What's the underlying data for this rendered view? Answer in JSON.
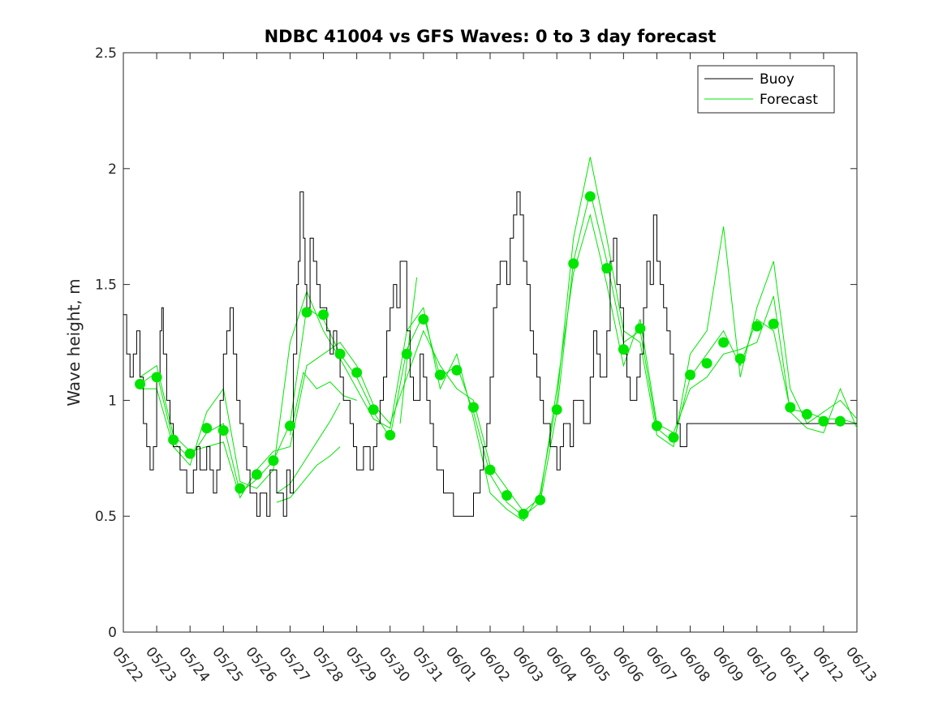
{
  "chart_data": {
    "type": "line",
    "title": "NDBC 41004 vs GFS Waves: 0 to 3 day forecast",
    "xlabel": "",
    "ylabel": "Wave height, m",
    "ylim": [
      0,
      2.5
    ],
    "xlim": [
      "05/22",
      "06/13"
    ],
    "yticks": [
      0,
      0.5,
      1,
      1.5,
      2,
      2.5
    ],
    "ytick_labels": [
      "0",
      "0.5",
      "1",
      "1.5",
      "2",
      "2.5"
    ],
    "xtick_labels": [
      "05/22",
      "05/23",
      "05/24",
      "05/25",
      "05/26",
      "05/27",
      "05/28",
      "05/29",
      "05/30",
      "05/31",
      "06/01",
      "06/02",
      "06/03",
      "06/04",
      "06/05",
      "06/06",
      "06/07",
      "06/08",
      "06/09",
      "06/10",
      "06/11",
      "06/12",
      "06/13"
    ],
    "grid": false,
    "legend": {
      "placement": "top-right",
      "entries": [
        "Buoy",
        "Forecast"
      ]
    },
    "colors": {
      "buoy": "#000000",
      "forecast": "#00e600"
    },
    "buoy": {
      "name": "Buoy",
      "x_days": [
        0,
        0.1,
        0.2,
        0.3,
        0.4,
        0.5,
        0.6,
        0.7,
        0.8,
        0.9,
        1.0,
        1.1,
        1.15,
        1.2,
        1.3,
        1.4,
        1.5,
        1.6,
        1.7,
        1.8,
        1.9,
        2.0,
        2.1,
        2.2,
        2.3,
        2.4,
        2.5,
        2.6,
        2.7,
        2.8,
        2.9,
        3.0,
        3.1,
        3.2,
        3.3,
        3.4,
        3.5,
        3.6,
        3.7,
        3.8,
        3.9,
        4.0,
        4.1,
        4.2,
        4.3,
        4.4,
        4.5,
        4.6,
        4.7,
        4.8,
        4.9,
        5.0,
        5.1,
        5.2,
        5.25,
        5.3,
        5.35,
        5.4,
        5.45,
        5.5,
        5.6,
        5.7,
        5.8,
        5.9,
        6.0,
        6.1,
        6.2,
        6.3,
        6.4,
        6.5,
        6.6,
        6.7,
        6.8,
        6.9,
        7.0,
        7.1,
        7.2,
        7.3,
        7.4,
        7.5,
        7.6,
        7.7,
        7.8,
        7.9,
        8.0,
        8.1,
        8.2,
        8.3,
        8.4,
        8.5,
        8.6,
        8.7,
        8.8,
        8.9,
        9.0,
        9.1,
        9.2,
        9.3,
        9.4,
        9.5,
        9.6,
        9.7,
        9.8,
        9.9,
        10.0,
        10.1,
        10.2,
        10.3,
        10.4,
        10.5,
        10.6,
        10.7,
        10.8,
        10.9,
        11.0,
        11.1,
        11.2,
        11.3,
        11.4,
        11.5,
        11.6,
        11.7,
        11.8,
        11.9,
        12.0,
        12.1,
        12.2,
        12.3,
        12.4,
        12.5,
        12.6,
        12.7,
        12.8,
        12.9,
        13.0,
        13.1,
        13.2,
        13.3,
        13.4,
        13.5,
        13.6,
        13.7,
        13.8,
        13.9,
        14.0,
        14.1,
        14.2,
        14.3,
        14.4,
        14.5,
        14.6,
        14.7,
        14.8,
        14.9,
        15.0,
        15.1,
        15.2,
        15.3,
        15.4,
        15.5,
        15.6,
        15.7,
        15.8,
        15.9,
        16.0,
        16.1,
        16.2,
        16.3,
        16.4,
        16.5,
        16.6,
        16.7,
        16.8,
        16.9,
        17.0,
        17.1,
        17.2,
        17.3,
        17.4,
        17.5,
        17.6,
        17.7,
        17.8,
        17.9,
        18.0,
        18.1,
        18.2,
        18.3,
        18.4,
        18.5,
        18.6,
        18.7,
        18.8,
        18.9,
        19.0,
        19.1,
        19.2,
        19.3,
        19.4,
        19.5,
        19.6,
        19.7,
        19.8,
        19.9,
        20.0,
        20.1,
        20.2,
        20.3,
        20.4,
        20.5,
        20.6,
        20.7,
        20.8,
        20.9,
        21.0,
        21.1,
        21.2,
        21.3,
        21.4,
        21.5,
        21.6,
        21.7,
        21.8,
        21.9,
        22.0
      ],
      "y": [
        1.37,
        1.2,
        1.1,
        1.2,
        1.3,
        1.1,
        0.9,
        0.8,
        0.7,
        0.8,
        1.1,
        1.3,
        1.4,
        1.2,
        1.0,
        0.9,
        0.8,
        0.8,
        0.7,
        0.7,
        0.6,
        0.6,
        0.7,
        0.8,
        0.7,
        0.7,
        0.8,
        0.7,
        0.6,
        0.7,
        1.0,
        1.2,
        1.3,
        1.4,
        1.2,
        1.0,
        0.9,
        0.8,
        0.7,
        0.6,
        0.6,
        0.5,
        0.6,
        0.6,
        0.5,
        0.7,
        0.7,
        0.6,
        0.6,
        0.5,
        0.7,
        0.6,
        1.2,
        1.5,
        1.6,
        1.9,
        1.9,
        1.7,
        1.5,
        1.4,
        1.7,
        1.6,
        1.5,
        1.4,
        1.4,
        1.3,
        1.2,
        1.3,
        1.2,
        1.1,
        1.0,
        1.0,
        0.9,
        0.8,
        0.7,
        0.7,
        0.8,
        0.8,
        0.7,
        0.8,
        0.9,
        1.0,
        1.1,
        1.3,
        1.4,
        1.5,
        1.4,
        1.6,
        1.6,
        1.3,
        1.1,
        1.0,
        1.0,
        1.2,
        1.1,
        1.0,
        0.9,
        0.8,
        0.7,
        0.7,
        0.6,
        0.6,
        0.6,
        0.5,
        0.5,
        0.5,
        0.5,
        0.5,
        0.5,
        0.6,
        0.6,
        0.7,
        0.8,
        0.9,
        1.1,
        1.4,
        1.5,
        1.6,
        1.6,
        1.5,
        1.7,
        1.8,
        1.9,
        1.8,
        1.6,
        1.5,
        1.3,
        1.2,
        1.1,
        1.0,
        0.9,
        0.9,
        0.8,
        0.8,
        0.7,
        0.8,
        0.9,
        0.9,
        0.8,
        1.0,
        1.0,
        1.0,
        0.9,
        0.9,
        1.1,
        1.3,
        1.2,
        1.1,
        1.1,
        1.3,
        1.6,
        1.7,
        1.5,
        1.4,
        1.2,
        1.1,
        1.0,
        1.0,
        1.1,
        1.2,
        1.4,
        1.6,
        1.5,
        1.8,
        1.6,
        1.5,
        1.4,
        1.3,
        1.2,
        1.0,
        0.9,
        0.8,
        0.8,
        0.9,
        0.9,
        0.9,
        0.9,
        0.9,
        0.9,
        0.9,
        0.9,
        0.9,
        0.9,
        0.9,
        0.9,
        0.9,
        0.9,
        0.9,
        0.9,
        0.9,
        0.9,
        0.9,
        0.9,
        0.9,
        0.9,
        0.9,
        0.9,
        0.9,
        0.9,
        0.9,
        0.9,
        0.9,
        0.9,
        0.9,
        0.9,
        0.9,
        0.9,
        0.9,
        0.9,
        0.9,
        0.9,
        0.9,
        0.9,
        0.9,
        0.9,
        0.9,
        0.9,
        0.9,
        0.9,
        0.9,
        0.9,
        0.9,
        0.9,
        0.9,
        0.9
      ]
    },
    "forecast_points": {
      "name": "Forecast",
      "x_days": [
        0.5,
        1.0,
        1.5,
        2.0,
        2.5,
        3.0,
        3.5,
        4.0,
        4.5,
        5.0,
        5.5,
        6.0,
        6.5,
        7.0,
        7.5,
        8.0,
        8.5,
        9.0,
        9.5,
        10.0,
        10.5,
        11.0,
        11.5,
        12.0,
        12.5,
        13.0,
        13.5,
        14.0,
        14.5,
        15.0,
        15.5,
        16.0,
        16.5,
        17.0,
        17.5,
        18.0,
        18.5,
        19.0,
        19.5,
        20.0,
        20.5,
        21.0,
        21.5
      ],
      "y": [
        1.07,
        1.1,
        0.83,
        0.77,
        0.88,
        0.87,
        0.62,
        0.68,
        0.74,
        0.89,
        1.38,
        1.37,
        1.2,
        1.12,
        0.96,
        0.85,
        1.2,
        1.35,
        1.11,
        1.13,
        0.97,
        0.7,
        0.59,
        0.51,
        0.57,
        0.96,
        1.59,
        1.88,
        1.57,
        1.22,
        1.31,
        0.89,
        0.84,
        1.11,
        1.16,
        1.25,
        1.18,
        1.32,
        1.33,
        0.97,
        0.94,
        0.91,
        0.91
      ]
    },
    "forecast_runs": [
      {
        "name": "Forecast",
        "x_days": [
          0.5,
          1.0,
          1.5,
          2.0,
          2.5,
          3.0,
          3.5,
          4.0,
          4.5,
          5.0,
          5.5,
          6.0,
          6.5,
          7.0,
          7.5,
          8.0,
          8.5,
          9.0,
          9.5,
          10.0,
          10.5,
          11.0,
          11.5,
          12.0,
          12.5,
          13.0,
          13.5,
          14.0,
          14.5,
          15.0,
          15.5,
          16.0,
          16.5,
          17.0,
          17.5,
          18.0,
          18.5,
          19.0,
          19.5,
          20.0,
          20.5,
          21.0,
          21.5,
          22.0
        ],
        "y": [
          1.07,
          1.12,
          0.82,
          0.75,
          0.86,
          0.9,
          0.6,
          0.66,
          0.74,
          0.9,
          1.4,
          1.35,
          1.2,
          1.1,
          0.95,
          0.84,
          1.22,
          1.37,
          1.1,
          1.15,
          0.95,
          0.68,
          0.56,
          0.5,
          0.56,
          0.95,
          1.6,
          1.9,
          1.6,
          1.25,
          1.3,
          0.88,
          0.82,
          1.1,
          1.2,
          1.3,
          1.15,
          1.35,
          1.3,
          0.96,
          0.95,
          0.92,
          0.92,
          0.9
        ]
      },
      {
        "name": "Forecast",
        "x_days": [
          0.5,
          1.0,
          1.5,
          2.0,
          2.5,
          3.0,
          3.5,
          4.0,
          4.5,
          5.0,
          5.5,
          6.0,
          6.5,
          7.0,
          7.5,
          8.0,
          8.5,
          9.0,
          9.5,
          10.0,
          10.5,
          11.0,
          11.5,
          12.0,
          12.5,
          13.0,
          13.5,
          14.0,
          14.5,
          15.0,
          15.5,
          16.0,
          16.5,
          17.0,
          17.5,
          18.0,
          18.5,
          19.0,
          19.5,
          20.0,
          20.5,
          21.0,
          21.5,
          22.0
        ],
        "y": [
          1.05,
          1.05,
          0.8,
          0.72,
          0.95,
          1.05,
          0.65,
          0.62,
          0.7,
          1.25,
          1.47,
          1.3,
          1.18,
          1.05,
          0.92,
          0.88,
          1.3,
          1.4,
          1.05,
          1.2,
          0.92,
          0.6,
          0.53,
          0.48,
          0.6,
          1.0,
          1.7,
          2.05,
          1.7,
          1.3,
          1.25,
          0.85,
          0.8,
          1.2,
          1.3,
          1.75,
          1.1,
          1.4,
          1.6,
          1.05,
          0.9,
          0.95,
          1.0,
          0.92
        ]
      },
      {
        "name": "Forecast",
        "x_days": [
          0.5,
          1.0,
          1.5,
          2.0,
          2.5,
          3.0,
          3.5,
          4.0,
          4.5,
          5.0,
          5.5,
          6.0,
          6.5,
          7.0,
          7.5,
          8.0,
          8.5,
          9.0,
          9.5,
          10.0,
          10.5,
          11.0,
          11.5,
          12.0,
          12.5,
          13.0,
          13.5,
          14.0,
          14.5,
          15.0,
          15.5,
          16.0,
          16.5,
          17.0,
          17.5,
          18.0,
          18.5,
          19.0,
          19.5,
          20.0,
          20.5,
          21.0,
          21.5,
          22.0
        ],
        "y": [
          1.1,
          1.15,
          0.85,
          0.78,
          0.8,
          0.82,
          0.58,
          0.7,
          0.78,
          0.8,
          1.15,
          1.2,
          1.25,
          1.15,
          0.98,
          0.9,
          1.1,
          1.3,
          1.15,
          1.05,
          1.0,
          0.72,
          0.62,
          0.52,
          0.58,
          1.05,
          1.55,
          1.8,
          1.5,
          1.15,
          1.35,
          0.9,
          0.86,
          1.05,
          1.1,
          1.2,
          1.22,
          1.25,
          1.45,
          0.95,
          0.88,
          0.86,
          1.05,
          0.88
        ]
      },
      {
        "name": "Forecast",
        "x_days": [
          4.6,
          5.0,
          5.4,
          5.8,
          6.2,
          6.5
        ],
        "y": [
          0.56,
          0.58,
          0.65,
          0.72,
          0.76,
          0.8
        ]
      },
      {
        "name": "Forecast",
        "x_days": [
          4.6,
          5.0,
          5.4,
          5.8,
          6.2,
          6.5
        ],
        "y": [
          0.6,
          0.64,
          0.73,
          0.82,
          0.91,
          0.99
        ]
      },
      {
        "name": "Forecast",
        "x_days": [
          5.0,
          5.4,
          5.8,
          6.2,
          6.6,
          7.0
        ],
        "y": [
          0.85,
          1.12,
          1.05,
          1.08,
          1.02,
          1.0
        ]
      },
      {
        "name": "Forecast",
        "x_days": [
          8.3,
          8.6,
          8.8
        ],
        "y": [
          0.9,
          1.3,
          1.53
        ]
      }
    ]
  }
}
